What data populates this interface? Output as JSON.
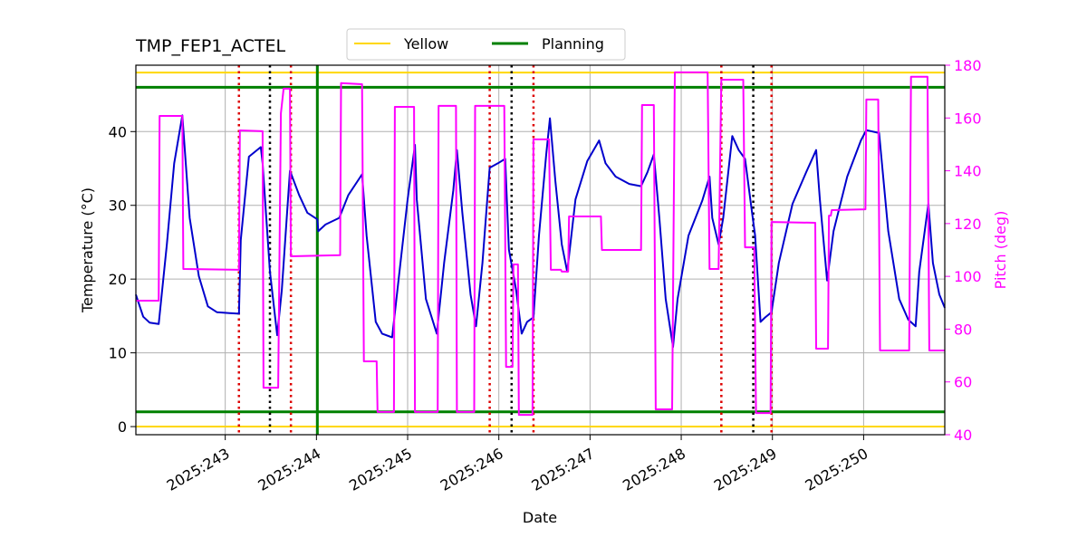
{
  "chart_data": {
    "type": "line",
    "title": "TMP_FEP1_ACTEL",
    "x_label": "Date",
    "y_label": "Temperature (°C)",
    "y2_label": "Pitch (deg)",
    "xlim": [
      242.02,
      250.89
    ],
    "xticks": [
      {
        "value": 243,
        "label": "2025:243"
      },
      {
        "value": 244,
        "label": "2025:244"
      },
      {
        "value": 245,
        "label": "2025:245"
      },
      {
        "value": 246,
        "label": "2025:246"
      },
      {
        "value": 247,
        "label": "2025:247"
      },
      {
        "value": 248,
        "label": "2025:248"
      },
      {
        "value": 249,
        "label": "2025:249"
      },
      {
        "value": 250,
        "label": "2025:250"
      }
    ],
    "ylim": [
      -1.1,
      49
    ],
    "yticks": [
      0,
      10,
      20,
      30,
      40
    ],
    "y2lim": [
      40,
      180
    ],
    "y2ticks": [
      40,
      60,
      80,
      100,
      120,
      140,
      160,
      180
    ],
    "y2_color": "#ff00ff",
    "grid": true,
    "legend": "top",
    "lines": [
      {
        "color": "#0000cd",
        "x": [
          242.02,
          242.1,
          242.17,
          242.27,
          242.36,
          242.44,
          242.53,
          242.61,
          242.71,
          242.81,
          242.91,
          243.15,
          243.17,
          243.26,
          243.39,
          243.41,
          243.49,
          243.57,
          243.62,
          243.71,
          243.81,
          243.9,
          244.01,
          244.02,
          244.1,
          244.25,
          244.35,
          244.5,
          244.55,
          244.65,
          244.72,
          244.83,
          244.9,
          245.0,
          245.08,
          245.1,
          245.2,
          245.32,
          245.4,
          245.5,
          245.54,
          245.6,
          245.69,
          245.75,
          245.82,
          245.9,
          245.99,
          246.07,
          246.11,
          246.19,
          246.25,
          246.31,
          246.38,
          246.44,
          246.52,
          246.56,
          246.62,
          246.69,
          246.75,
          246.84,
          246.97,
          247.1,
          247.17,
          247.28,
          247.43,
          247.56,
          247.63,
          247.7,
          247.76,
          247.83,
          247.91,
          247.96,
          248.08,
          248.23,
          248.31,
          248.34,
          248.41,
          248.46,
          248.56,
          248.63,
          248.7,
          248.77,
          248.81,
          248.87,
          248.92,
          248.99,
          249.07,
          249.22,
          249.37,
          249.48,
          249.52,
          249.6,
          249.67,
          249.82,
          249.97,
          250.03,
          250.17,
          250.27,
          250.39,
          250.49,
          250.57,
          250.61,
          250.71,
          250.76,
          250.83,
          250.89
        ],
        "values": [
          17.9,
          14.9,
          14.1,
          13.9,
          24.7,
          35.7,
          42.2,
          28.3,
          20.4,
          16.3,
          15.5,
          15.3,
          25.3,
          36.6,
          37.9,
          35.7,
          21.0,
          12.4,
          18.5,
          34.7,
          31.4,
          29.0,
          28.1,
          26.5,
          27.4,
          28.3,
          31.4,
          34.2,
          25.9,
          14.2,
          12.6,
          12.1,
          19.8,
          30.8,
          38.2,
          30.8,
          17.3,
          12.6,
          22.2,
          32.0,
          37.5,
          29.0,
          17.9,
          13.6,
          22.2,
          35.1,
          35.7,
          36.3,
          24.0,
          18.5,
          12.6,
          14.2,
          14.8,
          25.9,
          36.9,
          41.8,
          33.3,
          24.7,
          21.0,
          30.8,
          36.0,
          38.8,
          35.7,
          33.9,
          32.9,
          32.6,
          34.5,
          36.9,
          28.3,
          17.3,
          10.8,
          17.3,
          25.9,
          30.6,
          33.9,
          28.3,
          24.7,
          28.3,
          39.4,
          37.5,
          36.3,
          29.6,
          25.9,
          14.2,
          14.8,
          15.5,
          22.2,
          30.2,
          34.5,
          37.5,
          30.8,
          19.8,
          26.5,
          33.9,
          38.8,
          40.2,
          39.8,
          26.5,
          17.3,
          14.5,
          13.6,
          21.0,
          30.2,
          22.2,
          17.9,
          16.1
        ]
      },
      {
        "color": "#ff00ff",
        "axis": "y2",
        "x": [
          242.02,
          242.27,
          242.28,
          242.53,
          242.54,
          243.15,
          243.16,
          243.41,
          243.42,
          243.58,
          243.61,
          243.64,
          243.71,
          243.72,
          244.26,
          244.27,
          244.5,
          244.52,
          244.66,
          244.67,
          244.85,
          244.86,
          245.07,
          245.08,
          245.33,
          245.34,
          245.53,
          245.54,
          245.73,
          245.74,
          246.06,
          246.08,
          246.15,
          246.16,
          246.21,
          246.22,
          246.37,
          246.38,
          246.55,
          246.57,
          246.68,
          246.69,
          246.76,
          246.77,
          247.12,
          247.13,
          247.56,
          247.57,
          247.7,
          247.72,
          247.9,
          247.93,
          248.29,
          248.31,
          248.41,
          248.44,
          248.68,
          248.7,
          248.8,
          248.82,
          248.98,
          248.99,
          249.47,
          249.48,
          249.61,
          249.62,
          249.64,
          249.65,
          250.02,
          250.03,
          250.16,
          250.18,
          250.5,
          250.52,
          250.7,
          250.72,
          250.89
        ],
        "values": [
          90.8,
          90.8,
          160.8,
          160.8,
          102.8,
          102.5,
          155.3,
          155.0,
          57.8,
          57.8,
          161.8,
          171.1,
          171.1,
          107.6,
          108.0,
          173.2,
          172.8,
          67.8,
          67.8,
          48.6,
          48.6,
          164.2,
          164.2,
          48.6,
          48.6,
          164.6,
          164.6,
          48.6,
          48.6,
          164.6,
          164.6,
          65.7,
          65.7,
          104.5,
          104.5,
          47.5,
          47.5,
          151.9,
          151.9,
          102.5,
          102.5,
          101.8,
          101.8,
          122.7,
          122.7,
          110.0,
          110.0,
          164.9,
          164.9,
          49.6,
          49.6,
          177.3,
          177.3,
          102.8,
          102.8,
          174.5,
          174.5,
          111.0,
          111.0,
          48.2,
          48.2,
          120.6,
          120.3,
          72.6,
          72.6,
          123.0,
          123.0,
          125.1,
          125.4,
          167.0,
          167.0,
          71.9,
          71.9,
          175.6,
          175.6,
          71.9,
          71.9
        ]
      }
    ],
    "reference_lines": [
      {
        "name": "Yellow",
        "color": "#ffd700",
        "values": [
          48,
          0
        ]
      },
      {
        "name": "Planning",
        "color": "#008000",
        "values": [
          46,
          2
        ]
      }
    ],
    "vlines": [
      {
        "color": "#dd0000",
        "style": "dotted",
        "x": [
          243.15,
          243.72,
          245.9,
          246.38,
          248.44,
          248.99
        ]
      },
      {
        "color": "#000000",
        "style": "dotted",
        "x": [
          243.49,
          246.14,
          248.79
        ]
      },
      {
        "color": "#008000",
        "style": "solid",
        "x": [
          244.01
        ]
      }
    ]
  }
}
